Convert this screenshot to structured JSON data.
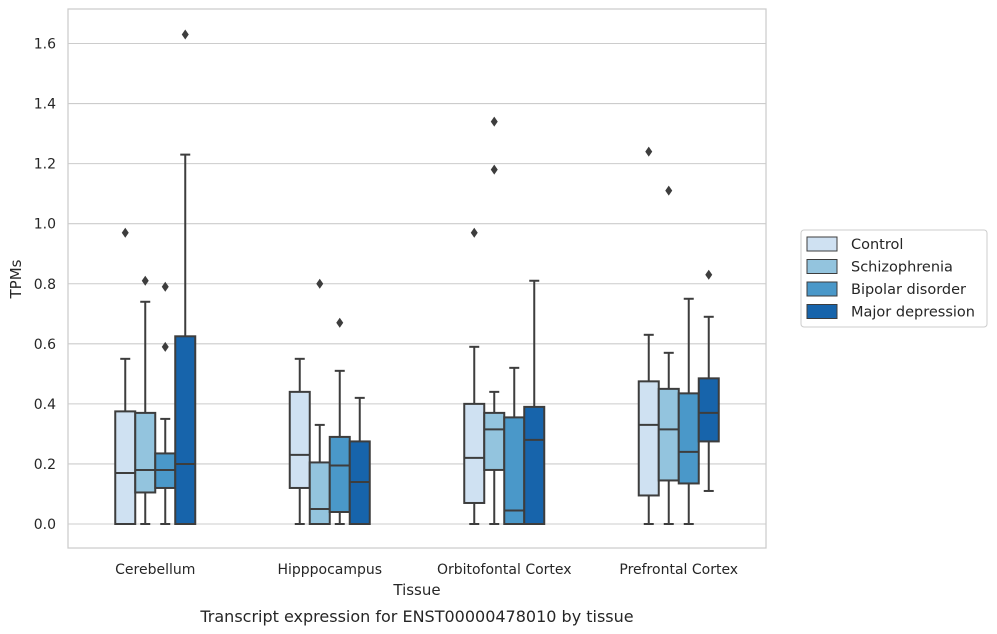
{
  "chart_data": {
    "type": "box",
    "categories": [
      "Cerebellum",
      "Hipppocampus",
      "Orbitofontal Cortex",
      "Prefrontal Cortex"
    ],
    "xlabel": "Tissue",
    "ylabel": "TPMs",
    "caption": "Transcript expression for ENST00000478010 by tissue",
    "ylim": [
      -0.08,
      1.72
    ],
    "yticks": [
      0.0,
      0.2,
      0.4,
      0.6,
      0.8,
      1.0,
      1.2,
      1.4,
      1.6
    ],
    "ytick_labels": [
      "0.0",
      "0.2",
      "0.4",
      "0.6",
      "0.8",
      "1.0",
      "1.2",
      "1.4",
      "1.6"
    ],
    "grid": true,
    "legend_position": "right",
    "series": [
      {
        "name": "Control",
        "color": "#cfe1f2",
        "boxes": [
          {
            "whislo": 0.0,
            "q1": 0.0,
            "med": 0.17,
            "q3": 0.375,
            "whishi": 0.55,
            "fliers": [
              0.97
            ]
          },
          {
            "whislo": 0.0,
            "q1": 0.12,
            "med": 0.23,
            "q3": 0.44,
            "whishi": 0.55,
            "fliers": []
          },
          {
            "whislo": 0.0,
            "q1": 0.07,
            "med": 0.22,
            "q3": 0.4,
            "whishi": 0.59,
            "fliers": [
              0.97
            ]
          },
          {
            "whislo": 0.0,
            "q1": 0.095,
            "med": 0.33,
            "q3": 0.475,
            "whishi": 0.63,
            "fliers": [
              1.24
            ]
          }
        ]
      },
      {
        "name": "Schizophrenia",
        "color": "#93c4de",
        "boxes": [
          {
            "whislo": 0.0,
            "q1": 0.105,
            "med": 0.18,
            "q3": 0.37,
            "whishi": 0.74,
            "fliers": [
              0.81
            ]
          },
          {
            "whislo": 0.0,
            "q1": 0.0,
            "med": 0.05,
            "q3": 0.205,
            "whishi": 0.33,
            "fliers": [
              0.8
            ]
          },
          {
            "whislo": 0.0,
            "q1": 0.18,
            "med": 0.315,
            "q3": 0.37,
            "whishi": 0.44,
            "fliers": [
              1.18,
              1.34
            ]
          },
          {
            "whislo": 0.0,
            "q1": 0.145,
            "med": 0.315,
            "q3": 0.45,
            "whishi": 0.57,
            "fliers": [
              1.11
            ]
          }
        ]
      },
      {
        "name": "Bipolar disorder",
        "color": "#4a98c9",
        "boxes": [
          {
            "whislo": 0.0,
            "q1": 0.12,
            "med": 0.18,
            "q3": 0.235,
            "whishi": 0.35,
            "fliers": [
              0.59,
              0.79
            ]
          },
          {
            "whislo": 0.0,
            "q1": 0.04,
            "med": 0.195,
            "q3": 0.29,
            "whishi": 0.51,
            "fliers": [
              0.67
            ]
          },
          {
            "whislo": 0.0,
            "q1": 0.0,
            "med": 0.045,
            "q3": 0.355,
            "whishi": 0.52,
            "fliers": []
          },
          {
            "whislo": 0.0,
            "q1": 0.135,
            "med": 0.24,
            "q3": 0.435,
            "whishi": 0.75,
            "fliers": []
          }
        ]
      },
      {
        "name": "Major depression",
        "color": "#1764ab",
        "boxes": [
          {
            "whislo": 0.0,
            "q1": 0.0,
            "med": 0.2,
            "q3": 0.625,
            "whishi": 1.23,
            "fliers": [
              1.63
            ]
          },
          {
            "whislo": 0.0,
            "q1": 0.0,
            "med": 0.14,
            "q3": 0.275,
            "whishi": 0.42,
            "fliers": []
          },
          {
            "whislo": 0.0,
            "q1": 0.0,
            "med": 0.28,
            "q3": 0.39,
            "whishi": 0.81,
            "fliers": []
          },
          {
            "whislo": 0.11,
            "q1": 0.275,
            "med": 0.37,
            "q3": 0.485,
            "whishi": 0.69,
            "fliers": [
              0.83
            ]
          }
        ]
      }
    ]
  }
}
